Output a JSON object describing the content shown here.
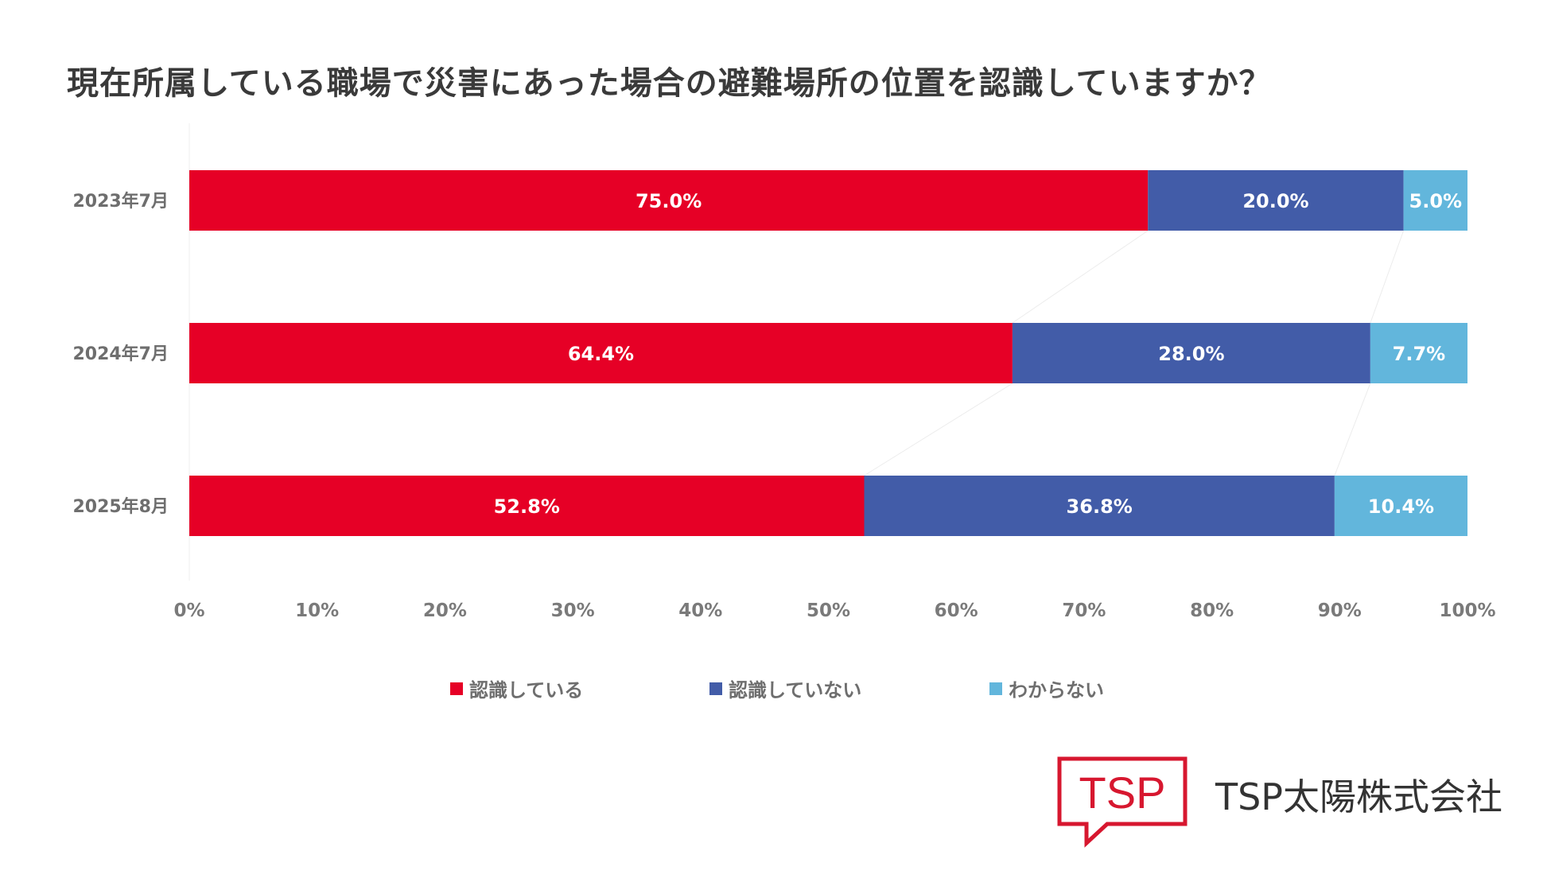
{
  "title": "現在所属している職場で災害にあった場合の避難場所の位置を認識していますか？",
  "company": "TSP太陽株式会社",
  "logo_text": "TSP",
  "colors": {
    "aware": "#e60026",
    "not_aware": "#425ca8",
    "unknown": "#62b6dc",
    "brand": "#d7172f"
  },
  "chart_data": {
    "type": "bar",
    "orientation": "horizontal",
    "stacked": true,
    "categories": [
      "2023年7月",
      "2024年7月",
      "2025年8月"
    ],
    "series": [
      {
        "name": "認識している",
        "color": "#e60026",
        "values": [
          75.0,
          64.4,
          52.8
        ],
        "labels": [
          "75.0%",
          "64.4%",
          "52.8%"
        ]
      },
      {
        "name": "認識していない",
        "color": "#425ca8",
        "values": [
          20.0,
          28.0,
          36.8
        ],
        "labels": [
          "20.0%",
          "28.0%",
          "36.8%"
        ]
      },
      {
        "name": "わからない",
        "color": "#62b6dc",
        "values": [
          5.0,
          7.7,
          10.4
        ],
        "labels": [
          "5.0%",
          "7.7%",
          "10.4%"
        ]
      }
    ],
    "xlim": [
      0,
      100
    ],
    "xticks": [
      "0%",
      "10%",
      "20%",
      "30%",
      "40%",
      "50%",
      "60%",
      "70%",
      "80%",
      "90%",
      "100%"
    ],
    "legend_position": "bottom",
    "grid": false
  }
}
